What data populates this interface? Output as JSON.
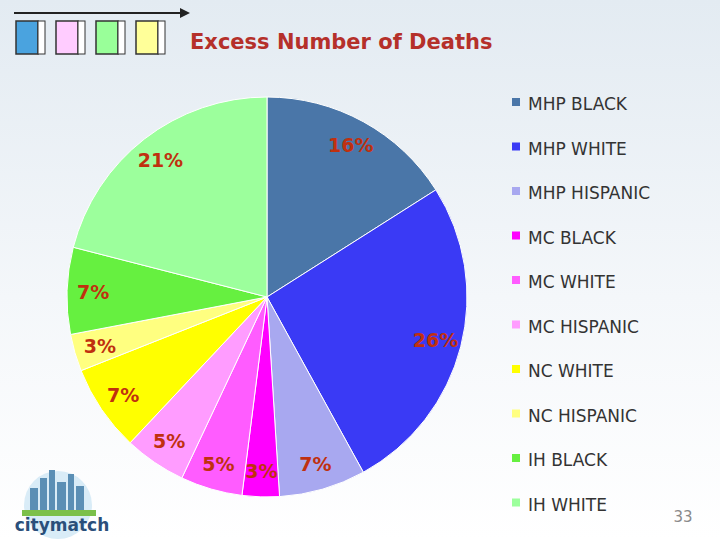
{
  "chart_data": {
    "type": "pie",
    "title": "Excess Number of Deaths",
    "categories": [
      "MHP BLACK",
      "MHP WHITE",
      "MHP HISPANIC",
      "MC BLACK",
      "MC WHITE",
      "MC HISPANIC",
      "NC WHITE",
      "NC HISPANIC",
      "IH BLACK",
      "IH WHITE"
    ],
    "values": [
      16,
      26,
      7,
      3,
      5,
      5,
      7,
      3,
      7,
      21
    ],
    "value_labels": [
      "16%",
      "26%",
      "7%",
      "3%",
      "5%",
      "5%",
      "7%",
      "3%",
      "7%",
      "21%"
    ],
    "colors": [
      "#4a76a8",
      "#3a3af5",
      "#a8a8f0",
      "#ff00ff",
      "#ff5cff",
      "#ff9cff",
      "#ffff00",
      "#ffff80",
      "#66f040",
      "#9cff9c"
    ],
    "data_labels": true,
    "legend": "right"
  },
  "footer": {
    "page_number": "33",
    "logo": "citymatch"
  }
}
